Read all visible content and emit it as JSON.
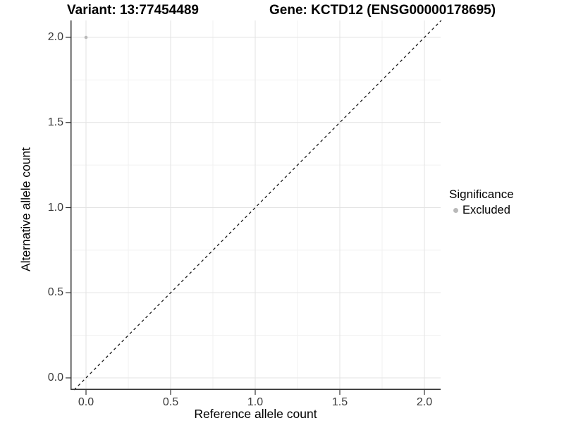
{
  "title": {
    "variant": "Variant: 13:77454489",
    "gene": "Gene: KCTD12 (ENSG00000178695)"
  },
  "legend": {
    "title": "Significance",
    "items": [
      {
        "label": "Excluded",
        "color": "#b9b9b9"
      }
    ]
  },
  "colors": {
    "point": "#b9b9b9",
    "grid_major": "#e3e3e3",
    "grid_minor": "#f1f1f1",
    "axis": "#333333",
    "dashed_line": "#1a1a1a",
    "tick_text": "#3a3a3a"
  },
  "chart_data": {
    "type": "scatter",
    "title": "Variant: 13:77454489    Gene: KCTD12 (ENSG00000178695)",
    "xlabel": "Reference allele count",
    "ylabel": "Alternative allele count",
    "x_ticks": [
      0.0,
      0.5,
      1.0,
      1.5,
      2.0
    ],
    "y_ticks": [
      0.0,
      0.5,
      1.0,
      1.5,
      2.0
    ],
    "x_minor_ticks": [
      0.25,
      0.75,
      1.25,
      1.75
    ],
    "y_minor_ticks": [
      0.25,
      0.75,
      1.25,
      1.75
    ],
    "xlim": [
      -0.0917,
      2.0958
    ],
    "ylim": [
      -0.0704,
      2.0994
    ],
    "grid": true,
    "legend_position": "right",
    "series": [
      {
        "name": "Excluded",
        "points": [
          {
            "x": 0.0,
            "y": 2.0
          }
        ]
      }
    ],
    "reference_line": {
      "style": "dashed",
      "slope": 1,
      "intercept": 0,
      "from": [
        -0.0704,
        -0.0704
      ],
      "to": [
        2.0994,
        2.0994
      ]
    }
  }
}
